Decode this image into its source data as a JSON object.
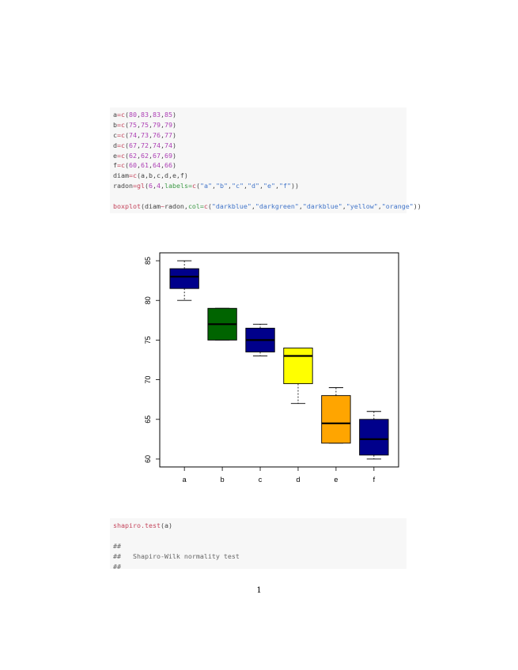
{
  "code1": [
    [
      [
        "tok-plain",
        "a"
      ],
      [
        "tok-fn",
        "="
      ],
      [
        "tok-fn",
        "c"
      ],
      [
        "tok-plain",
        "("
      ],
      [
        "tok-num",
        "80"
      ],
      [
        "tok-plain",
        ","
      ],
      [
        "tok-num",
        "83"
      ],
      [
        "tok-plain",
        ","
      ],
      [
        "tok-num",
        "83"
      ],
      [
        "tok-plain",
        ","
      ],
      [
        "tok-num",
        "85"
      ],
      [
        "tok-plain",
        ")"
      ]
    ],
    [
      [
        "tok-plain",
        "b"
      ],
      [
        "tok-fn",
        "="
      ],
      [
        "tok-fn",
        "c"
      ],
      [
        "tok-plain",
        "("
      ],
      [
        "tok-num",
        "75"
      ],
      [
        "tok-plain",
        ","
      ],
      [
        "tok-num",
        "75"
      ],
      [
        "tok-plain",
        ","
      ],
      [
        "tok-num",
        "79"
      ],
      [
        "tok-plain",
        ","
      ],
      [
        "tok-num",
        "79"
      ],
      [
        "tok-plain",
        ")"
      ]
    ],
    [
      [
        "tok-plain",
        "c"
      ],
      [
        "tok-fn",
        "="
      ],
      [
        "tok-fn",
        "c"
      ],
      [
        "tok-plain",
        "("
      ],
      [
        "tok-num",
        "74"
      ],
      [
        "tok-plain",
        ","
      ],
      [
        "tok-num",
        "73"
      ],
      [
        "tok-plain",
        ","
      ],
      [
        "tok-num",
        "76"
      ],
      [
        "tok-plain",
        ","
      ],
      [
        "tok-num",
        "77"
      ],
      [
        "tok-plain",
        ")"
      ]
    ],
    [
      [
        "tok-plain",
        "d"
      ],
      [
        "tok-fn",
        "="
      ],
      [
        "tok-fn",
        "c"
      ],
      [
        "tok-plain",
        "("
      ],
      [
        "tok-num",
        "67"
      ],
      [
        "tok-plain",
        ","
      ],
      [
        "tok-num",
        "72"
      ],
      [
        "tok-plain",
        ","
      ],
      [
        "tok-num",
        "74"
      ],
      [
        "tok-plain",
        ","
      ],
      [
        "tok-num",
        "74"
      ],
      [
        "tok-plain",
        ")"
      ]
    ],
    [
      [
        "tok-plain",
        "e"
      ],
      [
        "tok-fn",
        "="
      ],
      [
        "tok-fn",
        "c"
      ],
      [
        "tok-plain",
        "("
      ],
      [
        "tok-num",
        "62"
      ],
      [
        "tok-plain",
        ","
      ],
      [
        "tok-num",
        "62"
      ],
      [
        "tok-plain",
        ","
      ],
      [
        "tok-num",
        "67"
      ],
      [
        "tok-plain",
        ","
      ],
      [
        "tok-num",
        "69"
      ],
      [
        "tok-plain",
        ")"
      ]
    ],
    [
      [
        "tok-plain",
        "f"
      ],
      [
        "tok-fn",
        "="
      ],
      [
        "tok-fn",
        "c"
      ],
      [
        "tok-plain",
        "("
      ],
      [
        "tok-num",
        "60"
      ],
      [
        "tok-plain",
        ","
      ],
      [
        "tok-num",
        "61"
      ],
      [
        "tok-plain",
        ","
      ],
      [
        "tok-num",
        "64"
      ],
      [
        "tok-plain",
        ","
      ],
      [
        "tok-num",
        "66"
      ],
      [
        "tok-plain",
        ")"
      ]
    ],
    [
      [
        "tok-plain",
        "diam"
      ],
      [
        "tok-fn",
        "="
      ],
      [
        "tok-fn",
        "c"
      ],
      [
        "tok-plain",
        "(a,b,c,d,e,f)"
      ]
    ],
    [
      [
        "tok-plain",
        "radon"
      ],
      [
        "tok-fn",
        "="
      ],
      [
        "tok-fn",
        "gl"
      ],
      [
        "tok-plain",
        "("
      ],
      [
        "tok-num",
        "6"
      ],
      [
        "tok-plain",
        ","
      ],
      [
        "tok-num",
        "4"
      ],
      [
        "tok-plain",
        ","
      ],
      [
        "tok-arg",
        "labels="
      ],
      [
        "tok-fn",
        "c"
      ],
      [
        "tok-plain",
        "("
      ],
      [
        "tok-str",
        "\"a\""
      ],
      [
        "tok-plain",
        ","
      ],
      [
        "tok-str",
        "\"b\""
      ],
      [
        "tok-plain",
        ","
      ],
      [
        "tok-str",
        "\"c\""
      ],
      [
        "tok-plain",
        ","
      ],
      [
        "tok-str",
        "\"d\""
      ],
      [
        "tok-plain",
        ","
      ],
      [
        "tok-str",
        "\"e\""
      ],
      [
        "tok-plain",
        ","
      ],
      [
        "tok-str",
        "\"f\""
      ],
      [
        "tok-plain",
        "))"
      ]
    ],
    [],
    [
      [
        "tok-fn",
        "boxplot"
      ],
      [
        "tok-plain",
        "(diam"
      ],
      [
        "tok-fn",
        "~"
      ],
      [
        "tok-plain",
        "radon,"
      ],
      [
        "tok-arg",
        "col="
      ],
      [
        "tok-fn",
        "c"
      ],
      [
        "tok-plain",
        "("
      ],
      [
        "tok-str",
        "\"darkblue\""
      ],
      [
        "tok-plain",
        ","
      ],
      [
        "tok-str",
        "\"darkgreen\""
      ],
      [
        "tok-plain",
        ","
      ],
      [
        "tok-str",
        "\"darkblue\""
      ],
      [
        "tok-plain",
        ","
      ],
      [
        "tok-str",
        "\"yellow\""
      ],
      [
        "tok-plain",
        ","
      ],
      [
        "tok-str",
        "\"orange\""
      ],
      [
        "tok-plain",
        "))"
      ]
    ]
  ],
  "code2": [
    [
      [
        "tok-fn",
        "shapiro.test"
      ],
      [
        "tok-plain",
        "(a)"
      ]
    ],
    [],
    [
      [
        "tok-com",
        "##"
      ]
    ],
    [
      [
        "tok-com",
        "##   Shapiro-Wilk normality test"
      ]
    ],
    [
      [
        "tok-com",
        "##"
      ]
    ]
  ],
  "chart_data": {
    "type": "boxplot",
    "categories": [
      "a",
      "b",
      "c",
      "d",
      "e",
      "f"
    ],
    "colors": [
      "#00008B",
      "#006400",
      "#00008B",
      "#FFFF00",
      "#FFA500",
      "#00008B"
    ],
    "boxes": [
      {
        "min": 80,
        "q1": 81.5,
        "median": 83,
        "q3": 84,
        "max": 85
      },
      {
        "min": 75,
        "q1": 75,
        "median": 77,
        "q3": 79,
        "max": 79
      },
      {
        "min": 73,
        "q1": 73.5,
        "median": 75,
        "q3": 76.5,
        "max": 77
      },
      {
        "min": 67,
        "q1": 69.5,
        "median": 73,
        "q3": 74,
        "max": 74
      },
      {
        "min": 62,
        "q1": 62,
        "median": 64.5,
        "q3": 68,
        "max": 69
      },
      {
        "min": 60,
        "q1": 60.5,
        "median": 62.5,
        "q3": 65,
        "max": 66
      }
    ],
    "yticks": [
      60,
      65,
      70,
      75,
      80,
      85
    ],
    "ylim": [
      59,
      86
    ],
    "xlabel": "",
    "ylabel": "",
    "title": ""
  },
  "page_number": "1"
}
